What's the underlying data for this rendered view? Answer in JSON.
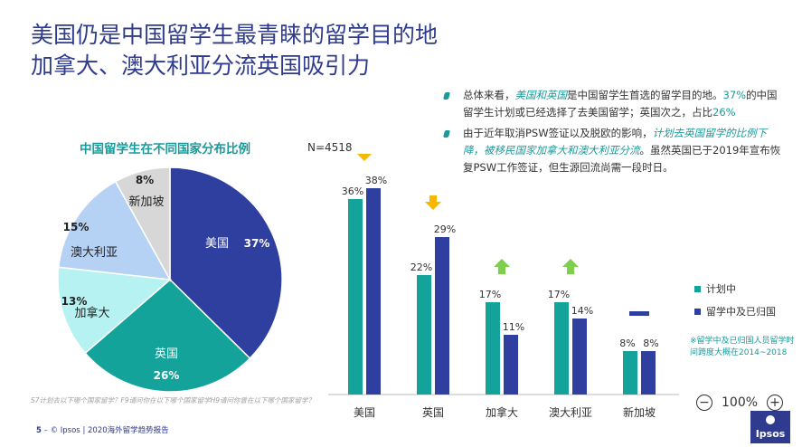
{
  "title": {
    "line1": "美国仍是中国留学生最青睐的留学目的地",
    "line2": "加拿大、澳大利亚分流英国吸引力"
  },
  "bullets": [
    {
      "parts": [
        {
          "text": "总体来看，",
          "style": "plain"
        },
        {
          "text": "美国和英国",
          "style": "highlight"
        },
        {
          "text": "是中国留学生首选的留学目的地。",
          "style": "plain"
        },
        {
          "text": "37%",
          "style": "number"
        },
        {
          "text": "的中国留学生计划或已经选择了去美国留学；英国次之，占比",
          "style": "plain"
        },
        {
          "text": "26%",
          "style": "number"
        }
      ]
    },
    {
      "parts": [
        {
          "text": "由于近年取消PSW签证以及脱欧的影响，",
          "style": "plain"
        },
        {
          "text": "计划去英国留学的比例下降，被移民国家加拿大和澳大利亚分流",
          "style": "highlight"
        },
        {
          "text": "。虽然英国已于2019年宣布恢复PSW工作签证，但生源回流尚需一段时日。",
          "style": "plain"
        }
      ]
    }
  ],
  "pie_title": "中国留学生在不同国家分布比例",
  "n_label": "N=4518",
  "legend": {
    "planning": "计划中",
    "studying": "留学中及已归国"
  },
  "note": "※留学中及已归国人员留学时间跨度大概在2014~2018",
  "footnote": "S7计划去以下哪个国家留学？F9请问你在以下哪个国家留学H9请问你曾在以下哪个国家留学？",
  "footer": {
    "page": "5",
    "text": " –  © Ipsos | 2020海外留学趋势报告"
  },
  "zoom": {
    "minus": "−",
    "value": "100%",
    "plus": "+"
  },
  "logo": "Ipsos",
  "colors": {
    "navy": "#2e3f9f",
    "teal": "#14a39a",
    "aqua": "#b6f2f2",
    "lightblue": "#b5d1f4",
    "gray": "#d7d7d7",
    "arrow_down": "#f6b800",
    "arrow_up": "#7fcf4f"
  },
  "chart_data": [
    {
      "type": "pie",
      "title": "中国留学生在不同国家分布比例",
      "slices": [
        {
          "label": "美国",
          "value": 37,
          "display": "37%",
          "color": "#2e3f9f"
        },
        {
          "label": "英国",
          "value": 26,
          "display": "26%",
          "color": "#14a39a"
        },
        {
          "label": "加拿大",
          "value": 13,
          "display": "13%",
          "color": "#b6f2f2"
        },
        {
          "label": "澳大利亚",
          "value": 15,
          "display": "15%",
          "color": "#b5d1f4"
        },
        {
          "label": "新加坡",
          "value": 8,
          "display": "8%",
          "color": "#d7d7d7"
        }
      ]
    },
    {
      "type": "bar",
      "categories": [
        "美国",
        "英国",
        "加拿大",
        "澳大利亚",
        "新加坡"
      ],
      "series": [
        {
          "name": "计划中",
          "values": [
            36,
            22,
            17,
            17,
            8
          ],
          "color": "#14a39a"
        },
        {
          "name": "留学中及已归国",
          "values": [
            38,
            29,
            11,
            14,
            8
          ],
          "color": "#2e3f9f"
        }
      ],
      "trend": [
        "down",
        "down",
        "up",
        "up",
        "flat"
      ],
      "ylim": [
        0,
        45
      ],
      "grid": false,
      "legend": "right"
    }
  ]
}
